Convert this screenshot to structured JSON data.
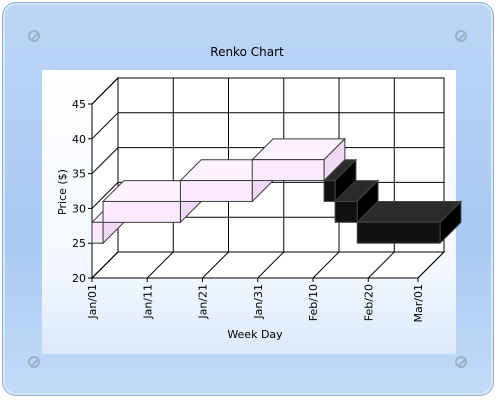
{
  "chart_data": {
    "type": "renko",
    "title": "Renko Chart",
    "xlabel": "Week Day",
    "ylabel": "Price ($)",
    "ylim": [
      20,
      45
    ],
    "yticks": [
      20,
      25,
      30,
      35,
      40,
      45
    ],
    "xticks": [
      "Jan/01",
      "Jan/11",
      "Jan/21",
      "Jan/31",
      "Feb/10",
      "Feb/20",
      "Mar/01"
    ],
    "grid": true,
    "three_d": true,
    "up_color": "#fbe9ff",
    "down_color": "#111111",
    "bricks": [
      {
        "start": "Jan/01",
        "end": "Jan/03",
        "low": 25,
        "high": 28,
        "direction": "up"
      },
      {
        "start": "Jan/03",
        "end": "Jan/17",
        "low": 28,
        "high": 31,
        "direction": "up"
      },
      {
        "start": "Jan/17",
        "end": "Jan/30",
        "low": 31,
        "high": 34,
        "direction": "up"
      },
      {
        "start": "Jan/30",
        "end": "Feb/12",
        "low": 34,
        "high": 37,
        "direction": "up"
      },
      {
        "start": "Feb/12",
        "end": "Feb/14",
        "low": 31,
        "high": 34,
        "direction": "down"
      },
      {
        "start": "Feb/14",
        "end": "Feb/18",
        "low": 28,
        "high": 31,
        "direction": "down"
      },
      {
        "start": "Feb/18",
        "end": "Mar/05",
        "low": 25,
        "high": 28,
        "direction": "down"
      }
    ]
  }
}
